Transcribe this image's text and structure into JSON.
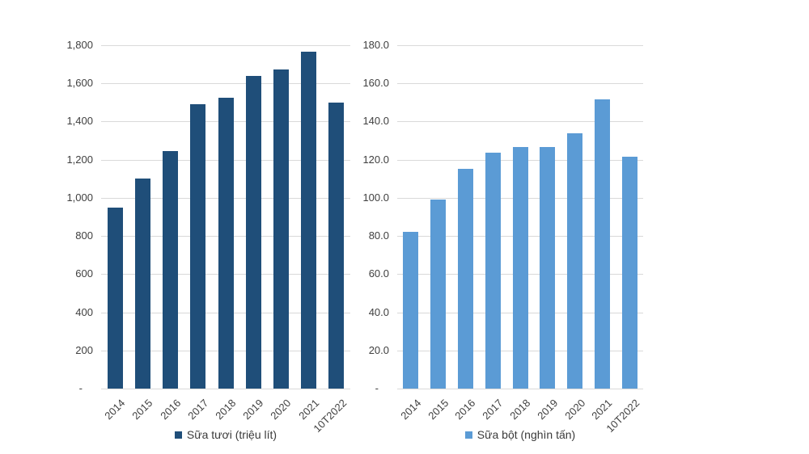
{
  "page": {
    "background": "#FFFFFF"
  },
  "colors": {
    "fresh_milk_bar": "#1F4E79",
    "powdered_milk_bar": "#5B9BD5",
    "gridline": "#D9D9D9",
    "axis_text": "#404040"
  },
  "chart_data": [
    {
      "type": "bar",
      "title": "",
      "legend_label": "Sữa tươi (triệu lít)",
      "legend_position": "bottom",
      "bar_color": "#1F4E79",
      "grid": true,
      "categories": [
        "2014",
        "2015",
        "2016",
        "2017",
        "2018",
        "2019",
        "2020",
        "2021",
        "10T2022"
      ],
      "values": [
        950,
        1100,
        1245,
        1490,
        1525,
        1640,
        1675,
        1765,
        1500
      ],
      "xlabel": "",
      "ylabel": "",
      "ylim": [
        0,
        1800
      ],
      "yticks": [
        {
          "value": 1800,
          "label": "1,800"
        },
        {
          "value": 1600,
          "label": "1,600"
        },
        {
          "value": 1400,
          "label": "1,400"
        },
        {
          "value": 1200,
          "label": "1,200"
        },
        {
          "value": 1000,
          "label": "1,000"
        },
        {
          "value": 800,
          "label": "800"
        },
        {
          "value": 600,
          "label": "600"
        },
        {
          "value": 400,
          "label": "400"
        },
        {
          "value": 200,
          "label": "200"
        },
        {
          "value": 0,
          "label": "-"
        }
      ]
    },
    {
      "type": "bar",
      "title": "",
      "legend_label": "Sữa bột (nghìn tấn)",
      "legend_position": "bottom",
      "bar_color": "#5B9BD5",
      "grid": true,
      "categories": [
        "2014",
        "2015",
        "2016",
        "2017",
        "2018",
        "2019",
        "2020",
        "2021",
        "10T2022"
      ],
      "values": [
        82,
        99,
        115,
        123.5,
        126.5,
        126.5,
        134,
        151.5,
        121.5
      ],
      "xlabel": "",
      "ylabel": "",
      "ylim": [
        0,
        180
      ],
      "yticks": [
        {
          "value": 180,
          "label": "180.0"
        },
        {
          "value": 160,
          "label": "160.0"
        },
        {
          "value": 140,
          "label": "140.0"
        },
        {
          "value": 120,
          "label": "120.0"
        },
        {
          "value": 100,
          "label": "100.0"
        },
        {
          "value": 80,
          "label": "80.0"
        },
        {
          "value": 60,
          "label": "60.0"
        },
        {
          "value": 40,
          "label": "40.0"
        },
        {
          "value": 20,
          "label": "20.0"
        },
        {
          "value": 0,
          "label": "-"
        }
      ]
    }
  ]
}
